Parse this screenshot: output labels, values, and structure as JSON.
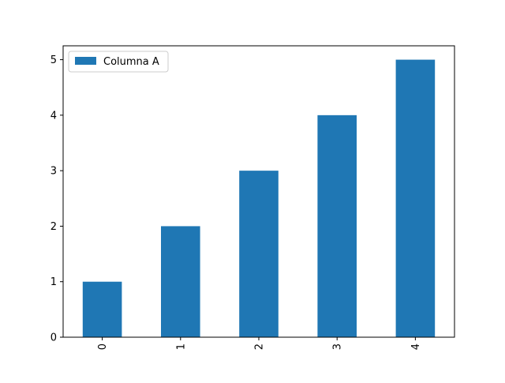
{
  "chart_data": {
    "type": "bar",
    "categories": [
      "0",
      "1",
      "2",
      "3",
      "4"
    ],
    "series": [
      {
        "name": "Columna A",
        "values": [
          1,
          2,
          3,
          4,
          5
        ],
        "color": "#1f77b4"
      }
    ],
    "title": "",
    "xlabel": "",
    "ylabel": "",
    "ylim": [
      0,
      5.25
    ],
    "yticks": [
      "0",
      "1",
      "2",
      "3",
      "4",
      "5"
    ],
    "grid": false,
    "legend_position": "top-left",
    "xtick_rotation": "vertical"
  }
}
